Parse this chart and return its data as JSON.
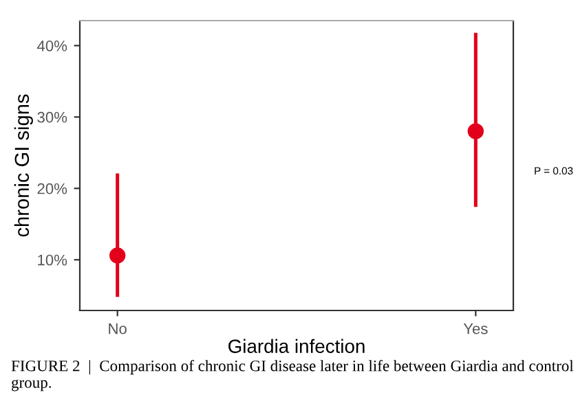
{
  "chart_data": {
    "type": "scatter",
    "categories": [
      "No",
      "Yes"
    ],
    "series": [
      {
        "color": "#e3001b",
        "values": [
          10.6,
          28.0
        ],
        "errors": [
          [
            4.8,
            22.1
          ],
          [
            17.4,
            41.8
          ]
        ]
      }
    ],
    "ylim": [
      2.9,
      43.5
    ],
    "yticks": [
      {
        "value": 10,
        "label": "10%"
      },
      {
        "value": 20,
        "label": "20%"
      },
      {
        "value": 30,
        "label": "30%"
      },
      {
        "value": 40,
        "label": "40%"
      }
    ],
    "xlabel": "Giardia infection",
    "ylabel": "chronic GI signs",
    "annotations": [
      "P = 0.03",
      "FIGURE 2  |  Comparison of chronic GI disease later in life between Giardia and control group."
    ],
    "marker": "circle",
    "grid": false,
    "legend": false
  }
}
